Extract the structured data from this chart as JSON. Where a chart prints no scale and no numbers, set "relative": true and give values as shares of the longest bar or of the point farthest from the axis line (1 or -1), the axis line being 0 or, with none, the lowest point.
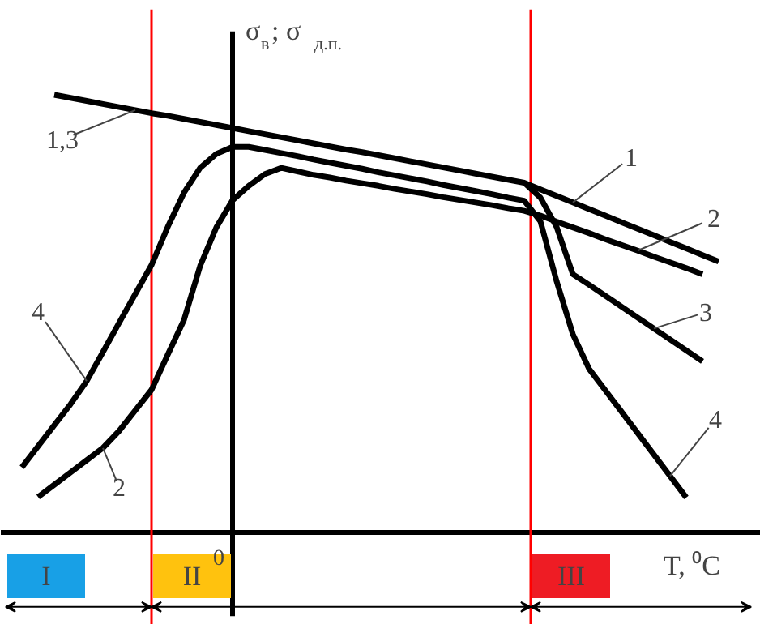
{
  "chart_data": {
    "type": "line",
    "relative": true,
    "ylabel": "σ$_{в}$; σ$_{д.п.}$",
    "xlabel": "T, ⁰C",
    "line_style": "solid",
    "marker": "none",
    "grid": false,
    "categories": [
      null,
      null,
      null,
      null,
      null,
      null,
      null,
      null,
      null,
      null,
      null,
      null,
      null,
      null,
      null,
      null,
      null,
      null,
      null,
      null,
      null,
      null,
      null,
      null,
      null,
      null,
      null,
      null,
      null,
      null,
      null,
      null,
      null,
      null,
      null,
      null,
      null,
      null,
      null,
      null,
      null,
      null,
      null,
      null,
      null,
      null,
      null
    ],
    "series": [
      {
        "name": "1,3",
        "color": "#000000",
        "values": [
          null,
          null,
          null,
          1.0,
          0.993,
          0.986,
          0.979,
          0.972,
          0.965,
          0.958,
          0.952,
          0.945,
          0.938,
          0.931,
          0.924,
          0.917,
          0.91,
          0.903,
          0.896,
          0.889,
          0.882,
          0.875,
          0.869,
          0.862,
          0.855,
          0.848,
          0.841,
          0.834,
          0.827,
          0.82,
          0.813,
          0.806,
          0.799,
          0.784,
          0.769,
          0.754,
          0.739,
          0.724,
          0.709,
          0.694,
          0.679,
          0.664,
          0.649,
          0.634,
          0.619,
          null,
          null
        ]
      },
      {
        "name": "3",
        "color": "#000000",
        "values": [
          null,
          null,
          null,
          null,
          null,
          null,
          null,
          null,
          null,
          null,
          null,
          null,
          null,
          null,
          null,
          null,
          null,
          null,
          null,
          null,
          null,
          null,
          null,
          null,
          null,
          null,
          null,
          null,
          null,
          null,
          null,
          null,
          0.799,
          0.765,
          0.698,
          0.59,
          0.566,
          0.541,
          0.516,
          0.491,
          0.466,
          0.441,
          0.416,
          0.391,
          null,
          null,
          null
        ]
      },
      {
        "name": "2",
        "color": "#000000",
        "values": [
          null,
          null,
          0.081,
          0.109,
          0.137,
          0.165,
          0.193,
          0.232,
          0.279,
          0.326,
          0.406,
          0.485,
          0.609,
          0.697,
          0.759,
          0.792,
          0.819,
          0.833,
          0.825,
          0.817,
          0.811,
          0.804,
          0.798,
          0.792,
          0.785,
          0.779,
          0.773,
          0.766,
          0.76,
          0.754,
          0.748,
          0.741,
          0.735,
          0.724,
          0.71,
          0.697,
          0.684,
          0.67,
          0.657,
          0.644,
          0.63,
          0.617,
          0.604,
          0.59,
          null,
          null,
          null
        ]
      },
      {
        "name": "4",
        "color": "#000000",
        "values": [
          null,
          0.149,
          0.197,
          0.245,
          0.293,
          0.346,
          0.412,
          0.479,
          0.545,
          0.611,
          0.698,
          0.776,
          0.833,
          0.865,
          0.881,
          0.881,
          0.874,
          0.867,
          0.86,
          0.852,
          0.845,
          0.838,
          0.831,
          0.823,
          0.816,
          0.809,
          0.802,
          0.794,
          0.787,
          0.78,
          0.773,
          0.765,
          0.758,
          0.711,
          0.574,
          0.453,
          0.374,
          0.325,
          0.276,
          0.227,
          0.178,
          0.129,
          0.08,
          null,
          null,
          null,
          null
        ]
      }
    ],
    "annotations": [
      "1",
      "0",
      "I",
      "II",
      "III"
    ]
  }
}
